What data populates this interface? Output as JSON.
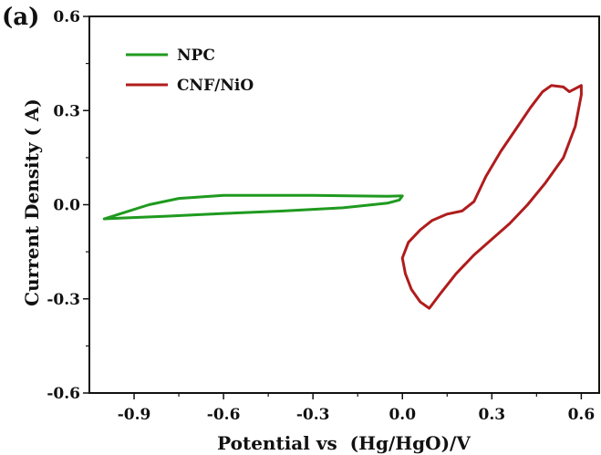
{
  "panel_label": "(a)",
  "chart_data": {
    "type": "line",
    "title": "",
    "xlabel": "Potential vs  (Hg/HgO)/V",
    "ylabel": "Current Density ( A)",
    "xlim": [
      -1.05,
      0.66
    ],
    "ylim": [
      -0.6,
      0.6
    ],
    "xticks": [
      -0.9,
      -0.6,
      -0.3,
      0.0,
      0.3,
      0.6
    ],
    "xtick_labels": [
      "-0.9",
      "-0.6",
      "-0.3",
      "0.0",
      "0.3",
      "0.6"
    ],
    "yticks": [
      -0.6,
      -0.3,
      0.0,
      0.3,
      0.6
    ],
    "ytick_labels": [
      "-0.6",
      "-0.3",
      "0.0",
      "0.3",
      "0.6"
    ],
    "grid": false,
    "legend_position": "top-left",
    "series": [
      {
        "name": "NPC",
        "color": "#1f9a1f",
        "x": [
          -1.0,
          -0.95,
          -0.85,
          -0.75,
          -0.6,
          -0.45,
          -0.3,
          -0.15,
          -0.05,
          -0.01,
          0.0,
          -0.01,
          -0.05,
          -0.2,
          -0.4,
          -0.6,
          -0.8,
          -0.95,
          -1.0
        ],
        "y": [
          -0.045,
          -0.03,
          0.0,
          0.02,
          0.03,
          0.03,
          0.03,
          0.028,
          0.027,
          0.028,
          0.028,
          0.015,
          0.005,
          -0.01,
          -0.02,
          -0.028,
          -0.037,
          -0.043,
          -0.045
        ]
      },
      {
        "name": "CNF/NiO",
        "color": "#b01c1c",
        "x": [
          0.0,
          0.02,
          0.06,
          0.1,
          0.15,
          0.2,
          0.24,
          0.28,
          0.33,
          0.38,
          0.43,
          0.47,
          0.5,
          0.54,
          0.56,
          0.58,
          0.6,
          0.6,
          0.58,
          0.54,
          0.48,
          0.42,
          0.36,
          0.3,
          0.24,
          0.18,
          0.13,
          0.09,
          0.06,
          0.03,
          0.01,
          0.0
        ],
        "y": [
          -0.17,
          -0.12,
          -0.08,
          -0.05,
          -0.03,
          -0.02,
          0.01,
          0.09,
          0.17,
          0.24,
          0.31,
          0.36,
          0.38,
          0.375,
          0.36,
          0.37,
          0.38,
          0.35,
          0.25,
          0.15,
          0.07,
          0.0,
          -0.06,
          -0.11,
          -0.16,
          -0.22,
          -0.28,
          -0.33,
          -0.31,
          -0.27,
          -0.22,
          -0.17
        ]
      }
    ]
  }
}
